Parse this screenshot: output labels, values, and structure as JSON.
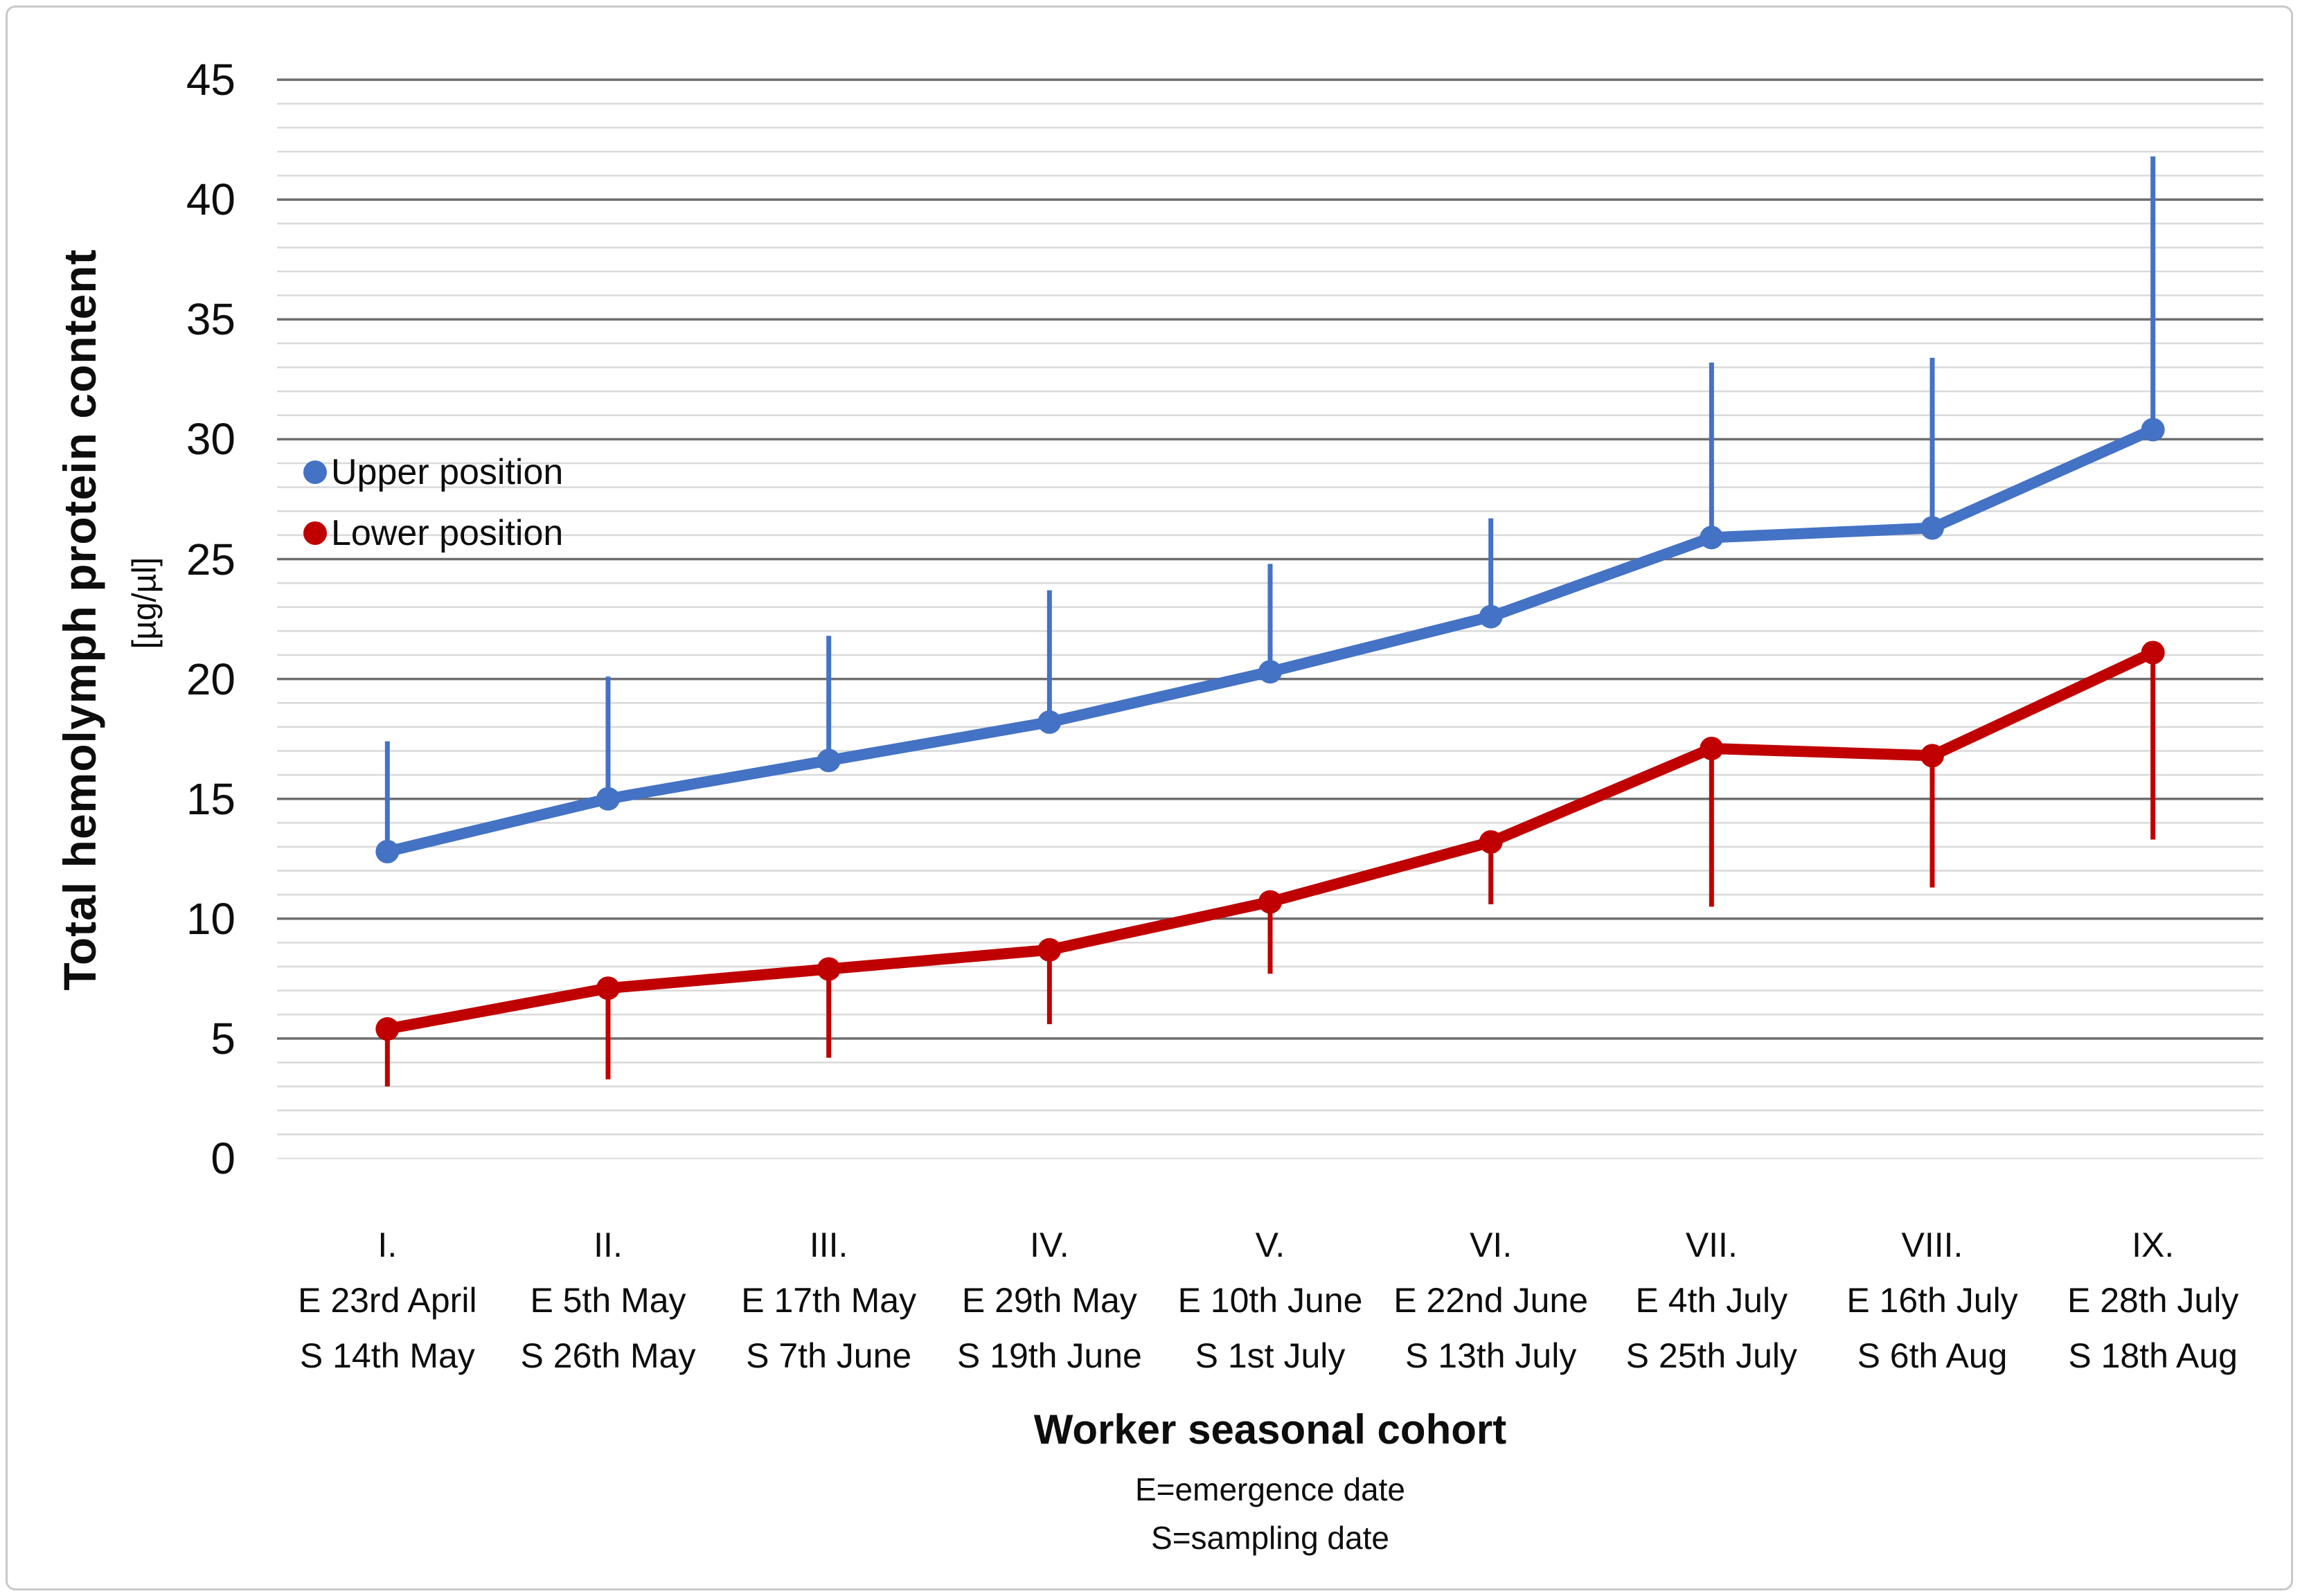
{
  "chart_data": {
    "type": "line",
    "title": "",
    "ylabel": "Total hemolymph protein content",
    "ylabel_unit": "[µg/µl]",
    "xlabel": "Worker seasonal cohort",
    "footnotes": [
      "E=emergence date",
      "S=sampling date"
    ],
    "ylim": [
      0,
      45
    ],
    "yticks": [
      0,
      5,
      10,
      15,
      20,
      25,
      30,
      35,
      40,
      45
    ],
    "ytick_minor_step": 1,
    "grid": "horizontal",
    "legend_position": "inside-upper-left",
    "categories": [
      {
        "roman": "I.",
        "emergence": "E 23rd April",
        "sampling": "S 14th May"
      },
      {
        "roman": "II.",
        "emergence": "E 5th May",
        "sampling": "S 26th May"
      },
      {
        "roman": "III.",
        "emergence": "E 17th May",
        "sampling": "S 7th June"
      },
      {
        "roman": "IV.",
        "emergence": "E 29th May",
        "sampling": "S 19th June"
      },
      {
        "roman": "V.",
        "emergence": "E 10th June",
        "sampling": "S 1st July"
      },
      {
        "roman": "VI.",
        "emergence": "E 22nd June",
        "sampling": "S 13th July"
      },
      {
        "roman": "VII.",
        "emergence": "E 4th July",
        "sampling": "S 25th July"
      },
      {
        "roman": "VIII.",
        "emergence": "E 16th July",
        "sampling": "S 6th Aug"
      },
      {
        "roman": "IX.",
        "emergence": "E 28th July",
        "sampling": "S 18th Aug"
      }
    ],
    "series": [
      {
        "name": "Upper position",
        "color": "#4472C4",
        "marker": "circle",
        "values": [
          12.8,
          15.0,
          16.6,
          18.2,
          20.3,
          22.6,
          25.9,
          26.3,
          30.4
        ],
        "error_direction": "up",
        "error_end": [
          17.4,
          20.1,
          21.8,
          23.7,
          24.8,
          26.7,
          33.2,
          33.4,
          41.8
        ]
      },
      {
        "name": "Lower position",
        "color": "#C00000",
        "marker": "circle",
        "values": [
          5.4,
          7.1,
          7.9,
          8.7,
          10.7,
          13.2,
          17.1,
          16.8,
          21.1
        ],
        "error_direction": "down",
        "error_end": [
          3.0,
          3.3,
          4.2,
          5.6,
          7.7,
          10.6,
          10.5,
          11.3,
          13.3
        ]
      }
    ],
    "colors": {
      "major_grid": "#6e6e6e",
      "minor_grid": "#d9d9d9",
      "zero_grid": "#e3e3e3",
      "frame": "#c9c9c9",
      "background": "#ffffff"
    }
  }
}
